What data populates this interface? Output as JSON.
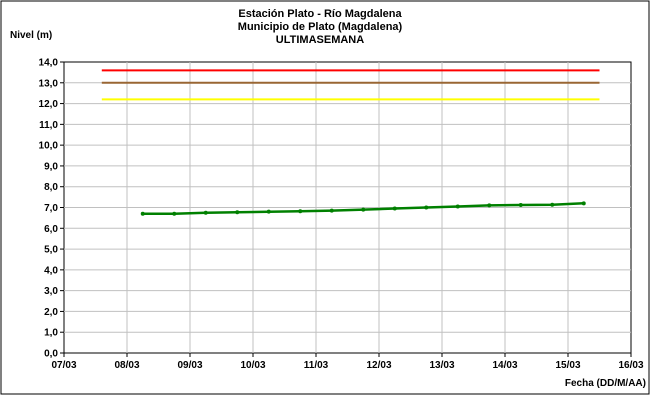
{
  "chart_data": {
    "type": "line",
    "title_lines": [
      "Estación Plato - Río Magdalena",
      "Municipio de Plato (Magdalena)",
      "ULTIMASEMANA"
    ],
    "ylabel": "Nivel (m)",
    "xlabel": "Fecha (DD/M/AA)",
    "ylim": [
      0,
      14
    ],
    "y_ticks": [
      "0,0",
      "1,0",
      "2,0",
      "3,0",
      "4,0",
      "5,0",
      "6,0",
      "7,0",
      "8,0",
      "9,0",
      "10,0",
      "11,0",
      "12,0",
      "13,0",
      "14,0"
    ],
    "x_ticks": [
      "07/03",
      "08/03",
      "09/03",
      "10/03",
      "11/03",
      "12/03",
      "13/03",
      "14/03",
      "15/03",
      "16/03"
    ],
    "grid": true,
    "threshold_lines": [
      {
        "level": 13.6,
        "color": "#ff0000",
        "x_range": [
          0.6,
          8.5
        ]
      },
      {
        "level": 13.0,
        "color": "#996633",
        "x_range": [
          0.6,
          8.5
        ]
      },
      {
        "level": 12.2,
        "color": "#ffff00",
        "x_range": [
          0.6,
          8.5
        ]
      }
    ],
    "series": [
      {
        "color": "#008000",
        "x": [
          1.25,
          1.75,
          2.25,
          2.75,
          3.25,
          3.75,
          4.25,
          4.75,
          5.25,
          5.75,
          6.25,
          6.75,
          7.25,
          7.75,
          8.25
        ],
        "values": [
          6.7,
          6.7,
          6.75,
          6.77,
          6.8,
          6.82,
          6.85,
          6.9,
          6.95,
          7.0,
          7.05,
          7.1,
          7.12,
          7.13,
          7.2
        ]
      }
    ]
  }
}
